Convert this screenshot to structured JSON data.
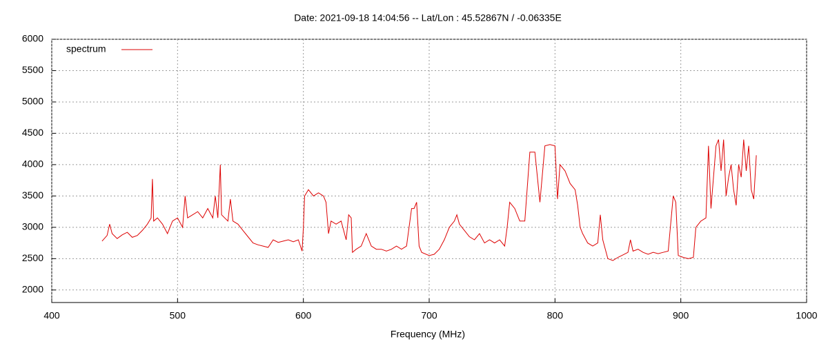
{
  "chart_data": {
    "type": "line",
    "title": "Date: 2021-09-18 14:04:56  --  Lat/Lon : 45.52867N / -0.06335E",
    "x_label": "Frequency (MHz)",
    "xlim": [
      400,
      1000
    ],
    "xticks": [
      400,
      500,
      600,
      700,
      800,
      900,
      1000
    ],
    "ylim": [
      1800,
      6000
    ],
    "yticks": [
      2000,
      2500,
      3000,
      3500,
      4000,
      4500,
      5000,
      5500,
      6000
    ],
    "grid": true,
    "legend": "top-left",
    "x": [
      440,
      444,
      446,
      448,
      452,
      456,
      460,
      464,
      468,
      472,
      476,
      479,
      480,
      481,
      484,
      488,
      492,
      496,
      500,
      504,
      506,
      508,
      512,
      516,
      520,
      524,
      528,
      530,
      532,
      534,
      535,
      540,
      542,
      544,
      548,
      552,
      556,
      560,
      564,
      568,
      572,
      576,
      580,
      584,
      588,
      592,
      596,
      599,
      600,
      601,
      604,
      608,
      612,
      616,
      618,
      620,
      622,
      626,
      630,
      634,
      636,
      638,
      639,
      642,
      646,
      650,
      654,
      658,
      662,
      666,
      670,
      674,
      678,
      682,
      686,
      688,
      690,
      692,
      694,
      700,
      704,
      708,
      712,
      716,
      720,
      722,
      724,
      728,
      732,
      736,
      740,
      744,
      748,
      752,
      756,
      760,
      762,
      764,
      768,
      772,
      776,
      780,
      784,
      788,
      792,
      796,
      800,
      802,
      804,
      808,
      812,
      816,
      818,
      820,
      822,
      826,
      830,
      834,
      836,
      838,
      842,
      846,
      850,
      854,
      858,
      860,
      862,
      866,
      870,
      874,
      878,
      882,
      886,
      890,
      894,
      896,
      898,
      902,
      906,
      910,
      912,
      916,
      920,
      922,
      924,
      928,
      930,
      932,
      934,
      936,
      938,
      940,
      942,
      944,
      946,
      948,
      950,
      952,
      954,
      956,
      958,
      960
    ],
    "series": [
      {
        "name": "spectrum",
        "color": "#dd0000",
        "values": [
          2780,
          2870,
          3050,
          2900,
          2820,
          2880,
          2920,
          2840,
          2870,
          2950,
          3050,
          3150,
          3770,
          3100,
          3150,
          3050,
          2900,
          3100,
          3150,
          3000,
          3500,
          3150,
          3200,
          3250,
          3150,
          3300,
          3150,
          3500,
          3150,
          4000,
          3200,
          3100,
          3450,
          3100,
          3050,
          2950,
          2850,
          2750,
          2720,
          2700,
          2680,
          2800,
          2760,
          2780,
          2800,
          2770,
          2800,
          2620,
          3000,
          3500,
          3600,
          3500,
          3550,
          3500,
          3400,
          2900,
          3100,
          3050,
          3100,
          2800,
          3200,
          3150,
          2600,
          2650,
          2700,
          2900,
          2700,
          2650,
          2650,
          2620,
          2650,
          2700,
          2650,
          2700,
          3300,
          3300,
          3400,
          2700,
          2600,
          2550,
          2570,
          2650,
          2800,
          3000,
          3100,
          3200,
          3050,
          2950,
          2850,
          2800,
          2900,
          2750,
          2800,
          2750,
          2800,
          2700,
          3000,
          3400,
          3300,
          3100,
          3100,
          4200,
          4200,
          3400,
          4300,
          4320,
          4300,
          3450,
          4000,
          3900,
          3700,
          3600,
          3350,
          3000,
          2900,
          2750,
          2700,
          2750,
          3200,
          2800,
          2500,
          2470,
          2520,
          2560,
          2600,
          2800,
          2620,
          2650,
          2600,
          2570,
          2600,
          2580,
          2600,
          2620,
          3500,
          3400,
          2550,
          2520,
          2500,
          2520,
          3000,
          3100,
          3150,
          4300,
          3300,
          4300,
          4400,
          3900,
          4400,
          3500,
          3800,
          4000,
          3600,
          3350,
          4000,
          3800,
          4400,
          3900,
          4300,
          3600,
          3450,
          4150
        ]
      }
    ]
  }
}
